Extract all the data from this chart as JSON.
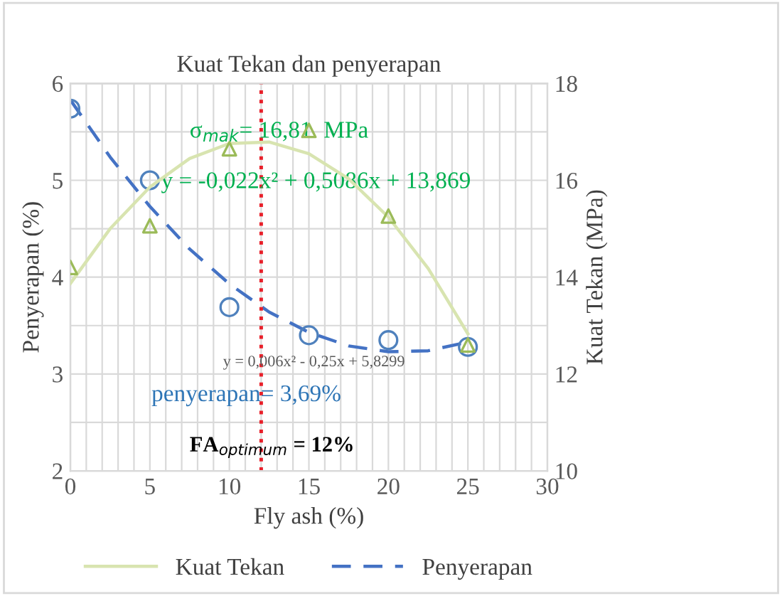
{
  "chart_data": {
    "type": "scatter",
    "title": "Kuat Tekan dan penyerapan",
    "xlabel": "Fly ash (%)",
    "ylabel": "Penyerapan (%)",
    "y2label": "Kuat Tekan (MPa)",
    "xlim": [
      0,
      30
    ],
    "xticks": [
      0,
      {
        "value": 1,
        "label": null
      },
      {
        "value": 2,
        "label": null
      },
      {
        "value": 3,
        "label": null
      },
      {
        "value": 4,
        "label": null
      },
      5,
      {
        "value": 6,
        "label": null
      },
      {
        "value": 7,
        "label": null
      },
      {
        "value": 8,
        "label": null
      },
      {
        "value": 9,
        "label": null
      },
      10,
      {
        "value": 11,
        "label": null
      },
      {
        "value": 12,
        "label": null
      },
      {
        "value": 13,
        "label": null
      },
      {
        "value": 14,
        "label": null
      },
      15,
      {
        "value": 16,
        "label": null
      },
      {
        "value": 17,
        "label": null
      },
      {
        "value": 18,
        "label": null
      },
      {
        "value": 19,
        "label": null
      },
      20,
      {
        "value": 21,
        "label": null
      },
      {
        "value": 22,
        "label": null
      },
      {
        "value": 23,
        "label": null
      },
      {
        "value": 24,
        "label": null
      },
      25,
      {
        "value": 26,
        "label": null
      },
      {
        "value": 27,
        "label": null
      },
      {
        "value": 28,
        "label": null
      },
      {
        "value": 29,
        "label": null
      },
      30
    ],
    "ylim": [
      2,
      6
    ],
    "yticks": [
      2,
      {
        "value": 2.5,
        "label": null
      },
      3,
      {
        "value": 3.5,
        "label": null
      },
      4,
      {
        "value": 4.5,
        "label": null
      },
      5,
      {
        "value": 5.5,
        "label": null
      },
      6
    ],
    "y2lim": [
      10,
      18
    ],
    "y2ticks": [
      10,
      12,
      14,
      16,
      18
    ],
    "grid": true,
    "legend": "bottom",
    "series": [
      {
        "axis": "y2",
        "marker": "triangle",
        "color": "#9bbb59",
        "x": [
          0,
          5,
          10,
          15,
          20,
          25
        ],
        "values": [
          14.2,
          15.06,
          16.65,
          17.03,
          15.26,
          12.6
        ]
      },
      {
        "axis": "y",
        "marker": "circle",
        "color": "#4f81bd",
        "x": [
          0,
          5,
          10,
          15,
          20,
          25
        ],
        "values": [
          5.74,
          5.0,
          3.69,
          3.4,
          3.35,
          3.28
        ]
      },
      {
        "type": "line",
        "name": "Kuat Tekan",
        "axis": "y2",
        "line_style": "solid",
        "color": "#d8e4b0",
        "x": [
          0,
          2.5,
          5,
          7.5,
          10,
          12.5,
          15,
          17.5,
          20,
          22.5,
          25
        ],
        "values": [
          13.87,
          15.0,
          15.86,
          16.45,
          16.76,
          16.79,
          16.55,
          16.03,
          15.24,
          14.18,
          12.83
        ]
      },
      {
        "type": "line",
        "name": "Penyerapan",
        "axis": "y",
        "line_style": "dashed",
        "color": "#4472c4",
        "x": [
          0,
          2.5,
          5,
          7.5,
          10,
          12.5,
          15,
          17.5,
          20,
          22.5,
          25
        ],
        "values": [
          5.83,
          5.24,
          4.73,
          4.29,
          3.93,
          3.64,
          3.43,
          3.29,
          3.23,
          3.24,
          3.33
        ]
      }
    ],
    "ref_lines": [
      {
        "axis": "x",
        "value": 12,
        "color": "#e8202a",
        "line_style": "dotted"
      }
    ],
    "annotations": [
      "σ$_{mak}$= 16,81  MPa",
      "y = -0,022x² + 0,5086x + 13,869",
      "y = 0,006x² - 0,25x + 5,8299",
      "penyerapan= 3,69%",
      "FA$_{optimum}$ = 12%"
    ]
  }
}
